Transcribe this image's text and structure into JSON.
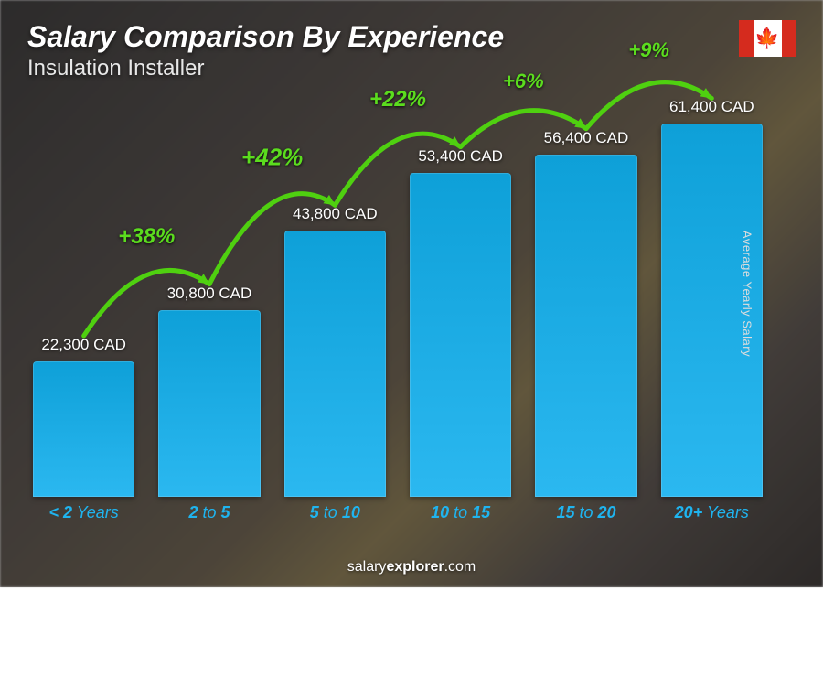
{
  "header": {
    "title": "Salary Comparison By Experience",
    "subtitle": "Insulation Installer"
  },
  "flag": {
    "country": "Canada",
    "side_color": "#d52b1e",
    "mid_color": "#ffffff"
  },
  "chart": {
    "type": "bar",
    "ylabel": "Average Yearly Salary",
    "max_value": 61400,
    "bar_gradient_top": "#0ea0d8",
    "bar_gradient_bottom": "#2bb8f0",
    "xlabel_color": "#1fb4ef",
    "value_color": "#ffffff",
    "pct_color": "#5bdc1e",
    "arrow_color": "#4fd010",
    "pct_fontsizes": [
      24,
      26,
      24,
      22,
      22
    ],
    "bars": [
      {
        "label_pre": "< 2",
        "label_post": " Years",
        "value": 22300,
        "value_label": "22,300 CAD"
      },
      {
        "label_pre": "2",
        "label_mid": " to ",
        "label_post": "5",
        "value": 30800,
        "value_label": "30,800 CAD",
        "pct": "+38%"
      },
      {
        "label_pre": "5",
        "label_mid": " to ",
        "label_post": "10",
        "value": 43800,
        "value_label": "43,800 CAD",
        "pct": "+42%"
      },
      {
        "label_pre": "10",
        "label_mid": " to ",
        "label_post": "15",
        "value": 53400,
        "value_label": "53,400 CAD",
        "pct": "+22%"
      },
      {
        "label_pre": "15",
        "label_mid": " to ",
        "label_post": "20",
        "value": 56400,
        "value_label": "56,400 CAD",
        "pct": "+6%"
      },
      {
        "label_pre": "20+",
        "label_post": " Years",
        "value": 61400,
        "value_label": "61,400 CAD",
        "pct": "+9%"
      }
    ]
  },
  "footer": {
    "brand_prefix": "salary",
    "brand_bold": "explorer",
    "brand_suffix": ".com"
  }
}
